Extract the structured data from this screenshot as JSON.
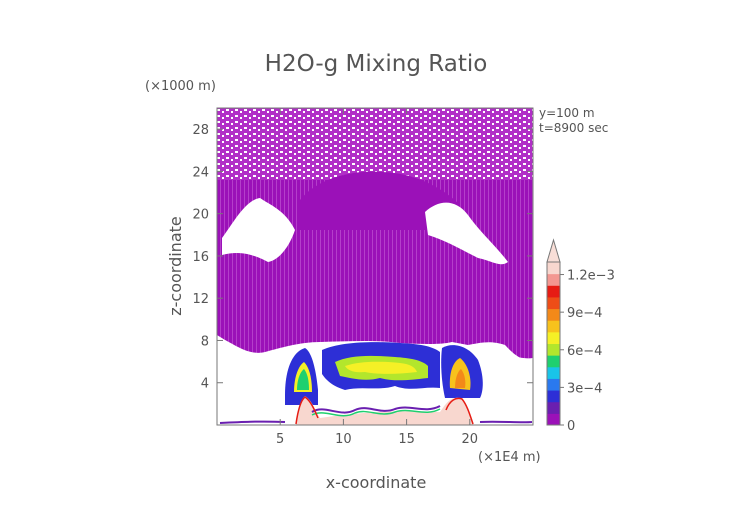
{
  "chart_data": {
    "type": "heatmap",
    "title": "H2O-g Mixing Ratio",
    "xlabel": "x-coordinate",
    "ylabel": "z-coordinate",
    "x_unit": "(×1E4 m)",
    "y_unit": "(×1000 m)",
    "annotations": [
      "y=100  m",
      "t=8900 sec"
    ],
    "xlim": [
      0,
      25
    ],
    "ylim": [
      0,
      30
    ],
    "x_ticks": [
      5,
      10,
      15,
      20
    ],
    "y_ticks": [
      4,
      8,
      12,
      16,
      20,
      24,
      28
    ],
    "colorbar": {
      "min": 0,
      "max": 0.0013,
      "ticks": [
        {
          "value": 0,
          "label": "0"
        },
        {
          "value": 0.0003,
          "label": "3e−4"
        },
        {
          "value": 0.0006,
          "label": "6e−4"
        },
        {
          "value": 0.0009,
          "label": "9e−4"
        },
        {
          "value": 0.0012,
          "label": "1.2e−3"
        }
      ],
      "colors": [
        "#9b11b8",
        "#6a1fb0",
        "#2d2fd6",
        "#2a79ef",
        "#19c4e8",
        "#1fd06f",
        "#b3e62c",
        "#f5f026",
        "#f7c21c",
        "#f38919",
        "#ee4d17",
        "#e61c14",
        "#f39791",
        "#f8d7cf"
      ],
      "extend_max": true
    },
    "regions": [
      {
        "name": "upper speckled layer",
        "x": [
          0,
          25
        ],
        "z": [
          25,
          30
        ],
        "value": 2e-05
      },
      {
        "name": "main moist layer",
        "x": [
          0,
          25
        ],
        "z": [
          7,
          25
        ],
        "value": 3e-05
      },
      {
        "name": "left cloud plume",
        "x": [
          7,
          9
        ],
        "z": [
          2,
          8
        ],
        "value": 0.0006
      },
      {
        "name": "central cloud band",
        "x": [
          10,
          17
        ],
        "z": [
          4,
          8
        ],
        "value": 0.0004
      },
      {
        "name": "right cloud plume",
        "x": [
          18,
          20
        ],
        "z": [
          2,
          8
        ],
        "value": 0.0007
      },
      {
        "name": "surface layer left",
        "x": [
          7,
          8
        ],
        "z": [
          0,
          3
        ],
        "value": 0.0013
      },
      {
        "name": "surface layer right",
        "x": [
          18,
          20
        ],
        "z": [
          0,
          3
        ],
        "value": 0.0013
      }
    ]
  }
}
